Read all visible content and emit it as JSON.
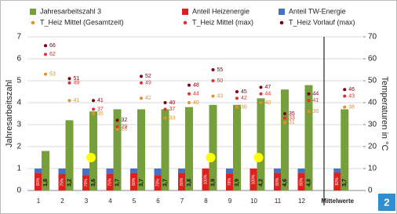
{
  "chart_data": {
    "type": "bar",
    "categories": [
      "1",
      "2",
      "3",
      "4",
      "5",
      "6",
      "7",
      "8",
      "9",
      "10",
      "11",
      "12",
      "Mittelwerte"
    ],
    "ylabel": "Jahresarbeitszahl",
    "y2label": "Temperaturen in °C",
    "ylim": [
      0,
      7
    ],
    "yticks": [
      0,
      1,
      2,
      3,
      4,
      5,
      6,
      7
    ],
    "y2lim": [
      0,
      70
    ],
    "y2ticks": [
      0,
      10,
      20,
      30,
      40,
      50,
      60,
      70
    ],
    "grid": true,
    "figure_label": "2",
    "series": [
      {
        "name": "Jahresarbeitszahl 3",
        "type": "bar",
        "color": "#77a03c",
        "values": [
          1.8,
          3.2,
          3.6,
          3.7,
          3.7,
          3.7,
          3.8,
          3.9,
          3.9,
          4.2,
          4.6,
          4.8,
          3.7
        ],
        "value_labels": [
          "1,8",
          "3,2",
          "3,6",
          "3,7",
          "3,7",
          "3,7",
          "3,8",
          "3,9",
          "3,9",
          "4,2",
          "4,6",
          "4,8",
          "3,7"
        ]
      },
      {
        "name": "Anteil Heizenergie",
        "type": "bar",
        "stacked": true,
        "color": "#e0201e",
        "values": [
          0.8,
          0.75,
          0.7,
          0.75,
          0.8,
          0.7,
          0.8,
          1.0,
          0.78,
          1.0,
          0.8,
          0.8,
          0.82
        ],
        "value_labels": [
          "80%",
          "75%",
          "70%",
          "75%",
          "80%",
          "70%",
          "80%",
          "100%",
          "78%",
          "100%",
          "80%",
          "80%",
          "82%"
        ]
      },
      {
        "name": "Anteil TW-Energie",
        "type": "bar",
        "stacked": true,
        "color": "#4472c4",
        "values": [
          0.2,
          0.25,
          0.3,
          0.25,
          0.2,
          0.3,
          0.2,
          0.0,
          0.22,
          0.0,
          0.2,
          0.2,
          0.18
        ],
        "value_labels": [
          "20%",
          "25%",
          "30%",
          "25%",
          "20%",
          "30%",
          "20%",
          "0%",
          "22%",
          "0%",
          "20%",
          "20%",
          "18%"
        ]
      },
      {
        "name": "T_Heiz Mittel (Gesamtzeit)",
        "type": "scatter",
        "axis": "y2",
        "color": "#e0922f",
        "values": [
          53,
          41,
          35,
          28,
          42,
          33,
          40,
          43,
          38,
          40,
          31,
          36,
          38
        ]
      },
      {
        "name": "T_Heiz Mittel (max)",
        "type": "scatter",
        "axis": "y2",
        "color": "#e03030",
        "values": [
          62,
          49,
          37,
          29,
          49,
          37,
          44,
          50,
          42,
          44,
          33,
          41,
          43
        ]
      },
      {
        "name": "T_Heiz Vorlauf (max)",
        "type": "scatter",
        "axis": "y2",
        "color": "#7a0010",
        "values": [
          66,
          51,
          41,
          32,
          52,
          40,
          48,
          55,
          45,
          47,
          35,
          44,
          46
        ]
      }
    ]
  }
}
